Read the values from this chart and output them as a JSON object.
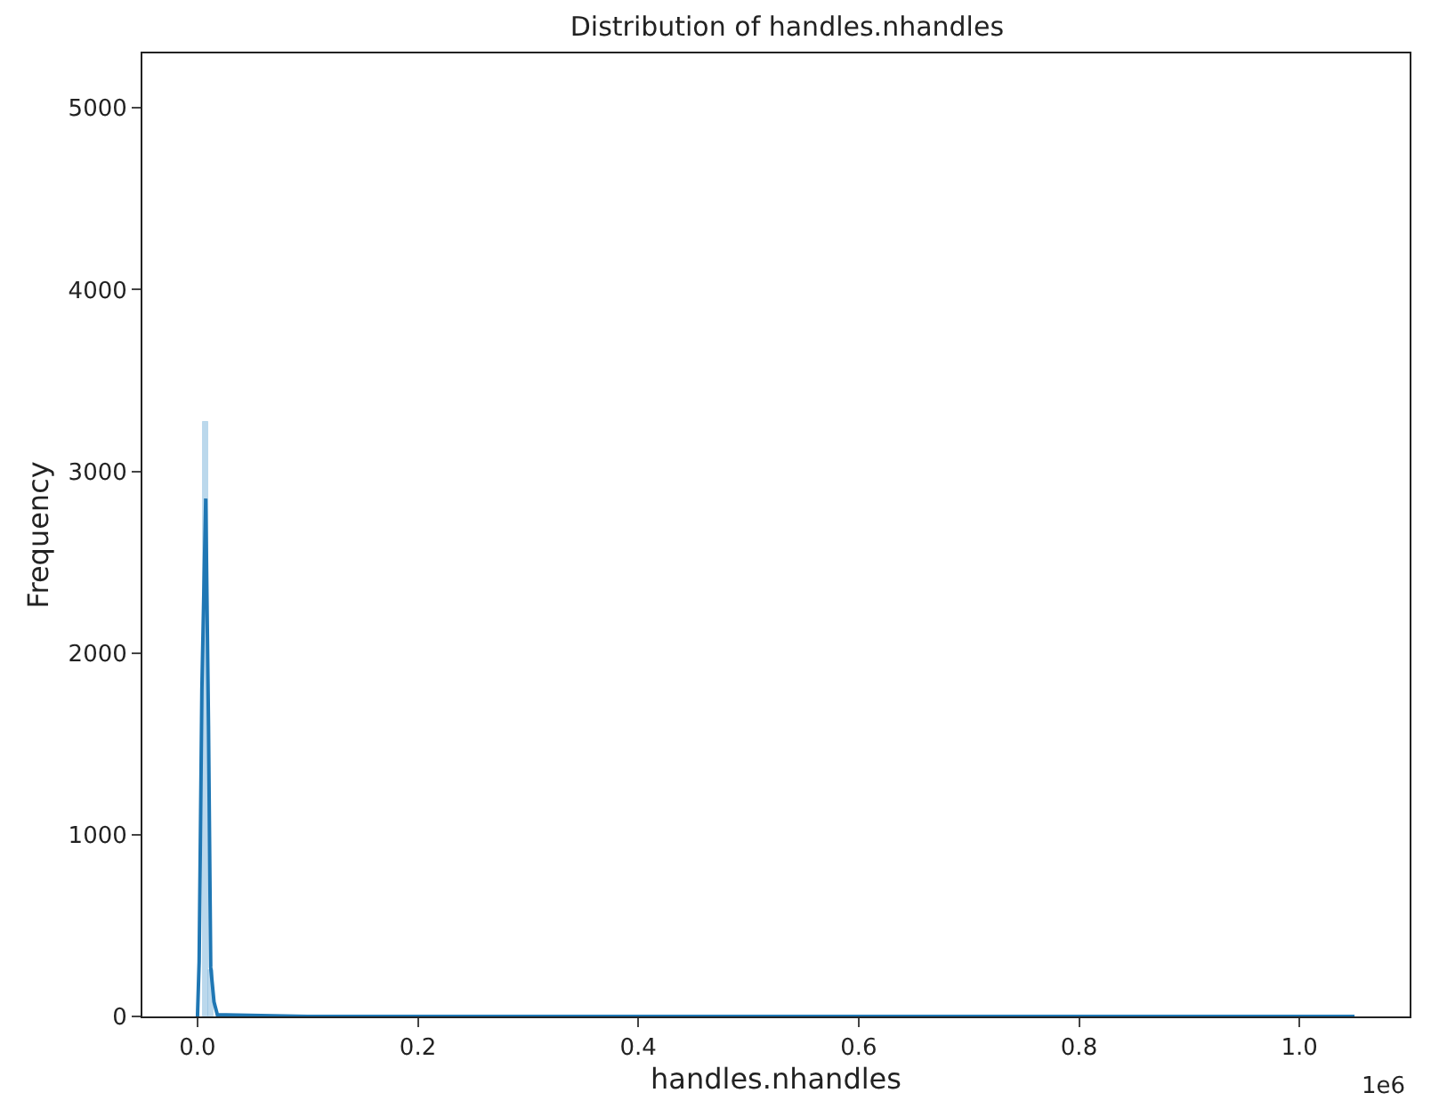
{
  "chart_data": {
    "type": "histogram",
    "title": "Distribution of handles.nhandles",
    "xlabel": "handles.nhandles",
    "ylabel": "Frequency",
    "bins": [
      0,
      0.005,
      0.01,
      0.015,
      0.02
    ],
    "series": [
      {
        "color": "#8fbfe0",
        "values": [
          null,
          3270,
          250,
          null
        ]
      },
      {
        "type": "line",
        "color": "#1f77b4",
        "x": [
          0,
          0.0015,
          0.004,
          0.0075,
          0.01,
          0.012,
          0.015,
          0.018,
          0.1,
          0.5,
          1.05
        ],
        "values": [
          0,
          300,
          1800,
          2850,
          1600,
          270,
          80,
          10,
          0,
          0,
          0
        ]
      }
    ],
    "xlim": [
      -0.05,
      1.1
    ],
    "ylim": [
      0,
      5300
    ],
    "xticks": [
      {
        "value": 0,
        "label": "0.0"
      },
      0.2,
      0.4,
      0.6,
      0.8,
      {
        "value": 1,
        "label": "1.0"
      }
    ],
    "yticks": [
      0,
      1000,
      2000,
      3000,
      4000,
      5000
    ],
    "annotations": [
      "1e6"
    ],
    "grid": false
  }
}
